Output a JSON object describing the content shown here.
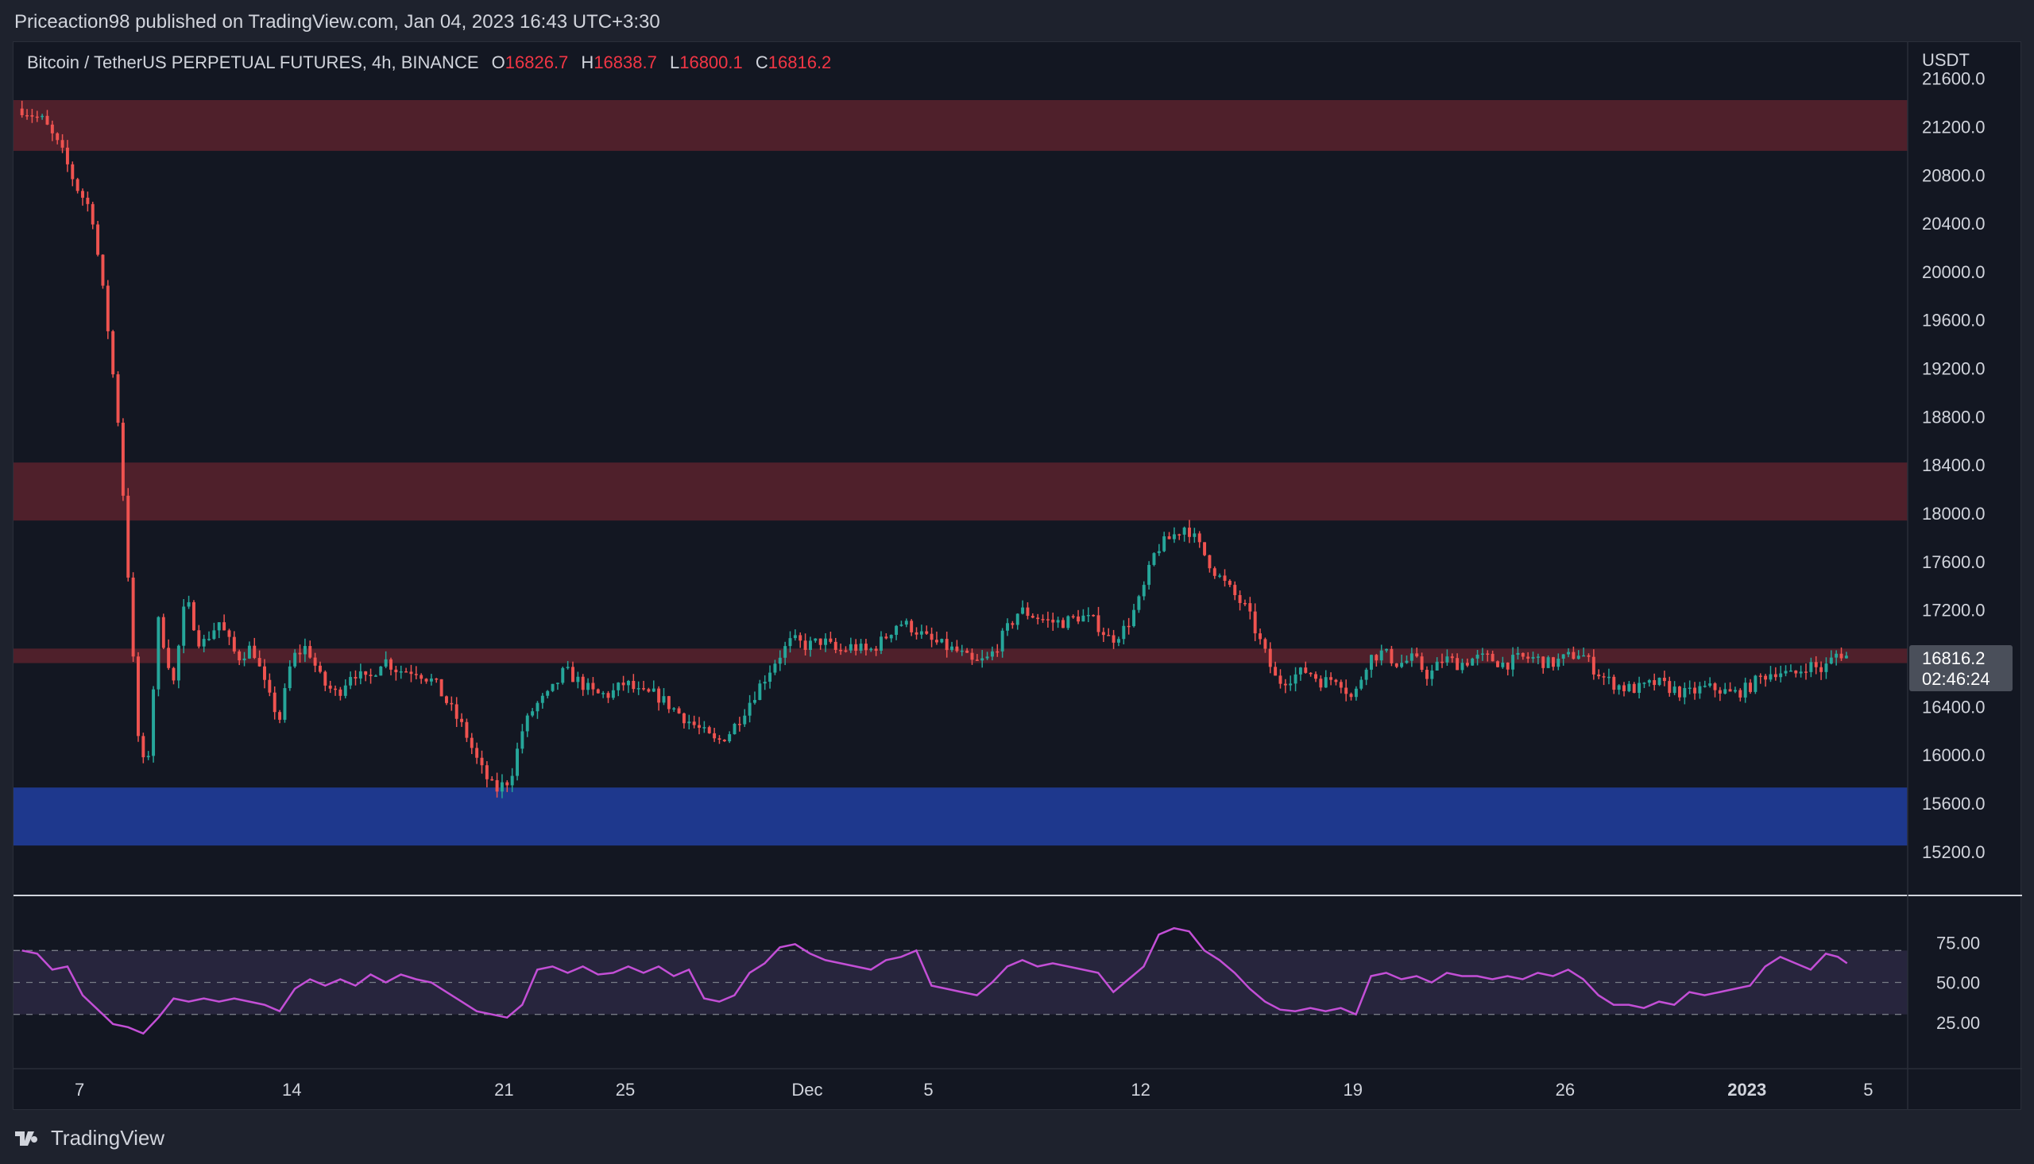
{
  "header": {
    "published": "Priceaction98 published on TradingView.com, Jan 04, 2023 16:43 UTC+3:30"
  },
  "legend": {
    "symbol": "Bitcoin / TetherUS PERPETUAL FUTURES, 4h, BINANCE",
    "open_label": "O",
    "open": "16826.7",
    "high_label": "H",
    "high": "16838.7",
    "low_label": "L",
    "low": "16800.1",
    "close_label": "C",
    "close": "16816.2"
  },
  "price_axis": {
    "unit": "USDT",
    "last_price": "16816.2",
    "countdown": "02:46:24"
  },
  "footer": {
    "brand": "TradingView"
  },
  "colors": {
    "up": "#26a69a",
    "down": "#ef5350",
    "resistance_zone": "#5a222d",
    "support_zone": "#1f3a93",
    "rsi_line": "#c34fd6",
    "rsi_band": "#2a2740"
  },
  "chart_data": [
    {
      "type": "candlestick",
      "title": "Bitcoin / TetherUS PERPETUAL FUTURES, 4h, BINANCE",
      "xlabel": "",
      "ylabel": "USDT",
      "ylim": [
        14850,
        21900
      ],
      "yticks": [
        21600,
        21200,
        20800,
        20400,
        20000,
        19600,
        19200,
        18800,
        18400,
        18000,
        17600,
        17200,
        16400,
        16000,
        15600,
        15200
      ],
      "x_tick_labels": [
        {
          "label": "7",
          "day": 7
        },
        {
          "label": "14",
          "day": 14
        },
        {
          "label": "21",
          "day": 21
        },
        {
          "label": "25",
          "day": 25
        },
        {
          "label": "Dec",
          "day": 31
        },
        {
          "label": "5",
          "day": 35
        },
        {
          "label": "12",
          "day": 42
        },
        {
          "label": "19",
          "day": 49
        },
        {
          "label": "26",
          "day": 56
        },
        {
          "label": "2023",
          "day": 62
        },
        {
          "label": "5",
          "day": 66
        }
      ],
      "zones": [
        {
          "kind": "resistance",
          "from": 21000,
          "to": 21420
        },
        {
          "kind": "resistance",
          "from": 17940,
          "to": 18420
        },
        {
          "kind": "resistance",
          "from": 16760,
          "to": 16880
        },
        {
          "kind": "support",
          "from": 15250,
          "to": 15730
        }
      ],
      "close_path": [
        [
          5.1,
          21350
        ],
        [
          5.8,
          21250
        ],
        [
          6.4,
          21000
        ],
        [
          6.9,
          20700
        ],
        [
          7.4,
          20500
        ],
        [
          7.9,
          19600
        ],
        [
          8.3,
          18700
        ],
        [
          8.6,
          17500
        ],
        [
          8.9,
          16200
        ],
        [
          9.2,
          15800
        ],
        [
          9.6,
          17100
        ],
        [
          10.1,
          16600
        ],
        [
          10.5,
          17300
        ],
        [
          11.0,
          16900
        ],
        [
          11.6,
          17100
        ],
        [
          12.2,
          16800
        ],
        [
          12.7,
          16900
        ],
        [
          13.2,
          16500
        ],
        [
          13.6,
          16300
        ],
        [
          14.0,
          16800
        ],
        [
          14.5,
          16900
        ],
        [
          15.0,
          16600
        ],
        [
          15.5,
          16500
        ],
        [
          16.0,
          16700
        ],
        [
          16.5,
          16600
        ],
        [
          17.0,
          16800
        ],
        [
          17.5,
          16700
        ],
        [
          18.1,
          16700
        ],
        [
          18.7,
          16600
        ],
        [
          19.2,
          16400
        ],
        [
          19.7,
          16200
        ],
        [
          20.2,
          15900
        ],
        [
          20.7,
          15700
        ],
        [
          21.2,
          15800
        ],
        [
          21.6,
          16200
        ],
        [
          22.0,
          16400
        ],
        [
          22.5,
          16500
        ],
        [
          23.0,
          16700
        ],
        [
          23.5,
          16600
        ],
        [
          24.0,
          16500
        ],
        [
          24.5,
          16500
        ],
        [
          25.0,
          16600
        ],
        [
          25.5,
          16500
        ],
        [
          26.0,
          16500
        ],
        [
          26.5,
          16400
        ],
        [
          27.0,
          16300
        ],
        [
          27.5,
          16200
        ],
        [
          28.0,
          16100
        ],
        [
          28.5,
          16200
        ],
        [
          29.0,
          16400
        ],
        [
          29.5,
          16600
        ],
        [
          30.0,
          16800
        ],
        [
          30.5,
          16950
        ],
        [
          31.0,
          16900
        ],
        [
          31.5,
          16950
        ],
        [
          32.0,
          16850
        ],
        [
          32.5,
          16900
        ],
        [
          33.0,
          16850
        ],
        [
          33.5,
          16950
        ],
        [
          34.0,
          17100
        ],
        [
          34.5,
          17050
        ],
        [
          35.0,
          16950
        ],
        [
          35.5,
          16900
        ],
        [
          36.0,
          16850
        ],
        [
          36.5,
          16750
        ],
        [
          37.0,
          16800
        ],
        [
          37.5,
          17000
        ],
        [
          38.0,
          17200
        ],
        [
          38.5,
          17150
        ],
        [
          39.0,
          17100
        ],
        [
          39.5,
          17100
        ],
        [
          40.0,
          17150
        ],
        [
          40.5,
          17100
        ],
        [
          41.0,
          16950
        ],
        [
          41.5,
          17050
        ],
        [
          42.0,
          17300
        ],
        [
          42.5,
          17700
        ],
        [
          43.0,
          17800
        ],
        [
          43.5,
          17900
        ],
        [
          44.0,
          17700
        ],
        [
          44.5,
          17500
        ],
        [
          45.0,
          17350
        ],
        [
          45.5,
          17200
        ],
        [
          46.0,
          16900
        ],
        [
          46.5,
          16600
        ],
        [
          47.0,
          16650
        ],
        [
          47.5,
          16700
        ],
        [
          48.0,
          16600
        ],
        [
          48.5,
          16650
        ],
        [
          49.0,
          16450
        ],
        [
          49.5,
          16800
        ],
        [
          50.0,
          16850
        ],
        [
          50.5,
          16750
        ],
        [
          51.0,
          16800
        ],
        [
          51.5,
          16650
        ],
        [
          52.0,
          16800
        ],
        [
          52.5,
          16750
        ],
        [
          53.0,
          16800
        ],
        [
          53.5,
          16800
        ],
        [
          54.0,
          16750
        ],
        [
          54.5,
          16800
        ],
        [
          55.0,
          16800
        ],
        [
          55.5,
          16750
        ],
        [
          56.0,
          16800
        ],
        [
          56.5,
          16850
        ],
        [
          57.0,
          16700
        ],
        [
          57.5,
          16600
        ],
        [
          58.0,
          16550
        ],
        [
          58.5,
          16550
        ],
        [
          59.0,
          16600
        ],
        [
          59.5,
          16550
        ],
        [
          60.0,
          16500
        ],
        [
          60.5,
          16550
        ],
        [
          61.0,
          16550
        ],
        [
          61.5,
          16500
        ],
        [
          62.0,
          16550
        ],
        [
          62.5,
          16650
        ],
        [
          63.0,
          16700
        ],
        [
          63.5,
          16650
        ],
        [
          64.0,
          16750
        ],
        [
          64.5,
          16700
        ],
        [
          65.0,
          16850
        ],
        [
          65.3,
          16816
        ]
      ]
    },
    {
      "type": "line",
      "title": "",
      "ylim": [
        0,
        100
      ],
      "yticks": [
        75.0,
        50.0,
        25.0
      ],
      "band": [
        30,
        70
      ],
      "series": [
        {
          "points": [
            [
              5.1,
              70
            ],
            [
              5.6,
              68
            ],
            [
              6.1,
              58
            ],
            [
              6.6,
              60
            ],
            [
              7.1,
              42
            ],
            [
              7.6,
              33
            ],
            [
              8.1,
              24
            ],
            [
              8.6,
              22
            ],
            [
              9.1,
              18
            ],
            [
              9.6,
              28
            ],
            [
              10.1,
              40
            ],
            [
              10.6,
              38
            ],
            [
              11.1,
              40
            ],
            [
              11.6,
              38
            ],
            [
              12.1,
              40
            ],
            [
              12.6,
              38
            ],
            [
              13.1,
              36
            ],
            [
              13.6,
              32
            ],
            [
              14.1,
              46
            ],
            [
              14.6,
              52
            ],
            [
              15.1,
              48
            ],
            [
              15.6,
              52
            ],
            [
              16.1,
              48
            ],
            [
              16.6,
              55
            ],
            [
              17.1,
              50
            ],
            [
              17.6,
              55
            ],
            [
              18.1,
              52
            ],
            [
              18.6,
              50
            ],
            [
              19.1,
              44
            ],
            [
              19.6,
              38
            ],
            [
              20.1,
              32
            ],
            [
              20.6,
              30
            ],
            [
              21.1,
              28
            ],
            [
              21.6,
              36
            ],
            [
              22.1,
              58
            ],
            [
              22.6,
              60
            ],
            [
              23.1,
              56
            ],
            [
              23.6,
              60
            ],
            [
              24.1,
              55
            ],
            [
              24.6,
              56
            ],
            [
              25.1,
              60
            ],
            [
              25.6,
              56
            ],
            [
              26.1,
              60
            ],
            [
              26.6,
              54
            ],
            [
              27.1,
              58
            ],
            [
              27.6,
              40
            ],
            [
              28.1,
              38
            ],
            [
              28.6,
              42
            ],
            [
              29.1,
              56
            ],
            [
              29.6,
              62
            ],
            [
              30.1,
              72
            ],
            [
              30.6,
              74
            ],
            [
              31.1,
              68
            ],
            [
              31.6,
              64
            ],
            [
              32.1,
              62
            ],
            [
              32.6,
              60
            ],
            [
              33.1,
              58
            ],
            [
              33.6,
              64
            ],
            [
              34.1,
              66
            ],
            [
              34.6,
              70
            ],
            [
              35.1,
              48
            ],
            [
              35.6,
              46
            ],
            [
              36.1,
              44
            ],
            [
              36.6,
              42
            ],
            [
              37.1,
              50
            ],
            [
              37.6,
              60
            ],
            [
              38.1,
              64
            ],
            [
              38.6,
              60
            ],
            [
              39.1,
              62
            ],
            [
              39.6,
              60
            ],
            [
              40.1,
              58
            ],
            [
              40.6,
              56
            ],
            [
              41.1,
              44
            ],
            [
              41.6,
              52
            ],
            [
              42.1,
              60
            ],
            [
              42.6,
              80
            ],
            [
              43.1,
              84
            ],
            [
              43.6,
              82
            ],
            [
              44.1,
              70
            ],
            [
              44.6,
              64
            ],
            [
              45.1,
              56
            ],
            [
              45.6,
              46
            ],
            [
              46.1,
              38
            ],
            [
              46.6,
              33
            ],
            [
              47.1,
              32
            ],
            [
              47.6,
              34
            ],
            [
              48.1,
              32
            ],
            [
              48.6,
              34
            ],
            [
              49.1,
              30
            ],
            [
              49.6,
              54
            ],
            [
              50.1,
              56
            ],
            [
              50.6,
              52
            ],
            [
              51.1,
              54
            ],
            [
              51.6,
              50
            ],
            [
              52.1,
              56
            ],
            [
              52.6,
              54
            ],
            [
              53.1,
              54
            ],
            [
              53.6,
              52
            ],
            [
              54.1,
              54
            ],
            [
              54.6,
              52
            ],
            [
              55.1,
              56
            ],
            [
              55.6,
              54
            ],
            [
              56.1,
              58
            ],
            [
              56.6,
              52
            ],
            [
              57.1,
              42
            ],
            [
              57.6,
              36
            ],
            [
              58.1,
              36
            ],
            [
              58.6,
              34
            ],
            [
              59.1,
              38
            ],
            [
              59.6,
              36
            ],
            [
              60.1,
              44
            ],
            [
              60.6,
              42
            ],
            [
              61.1,
              44
            ],
            [
              61.6,
              46
            ],
            [
              62.1,
              48
            ],
            [
              62.6,
              60
            ],
            [
              63.1,
              66
            ],
            [
              63.6,
              62
            ],
            [
              64.1,
              58
            ],
            [
              64.6,
              68
            ],
            [
              65.0,
              66
            ],
            [
              65.3,
              62
            ]
          ]
        }
      ]
    }
  ]
}
